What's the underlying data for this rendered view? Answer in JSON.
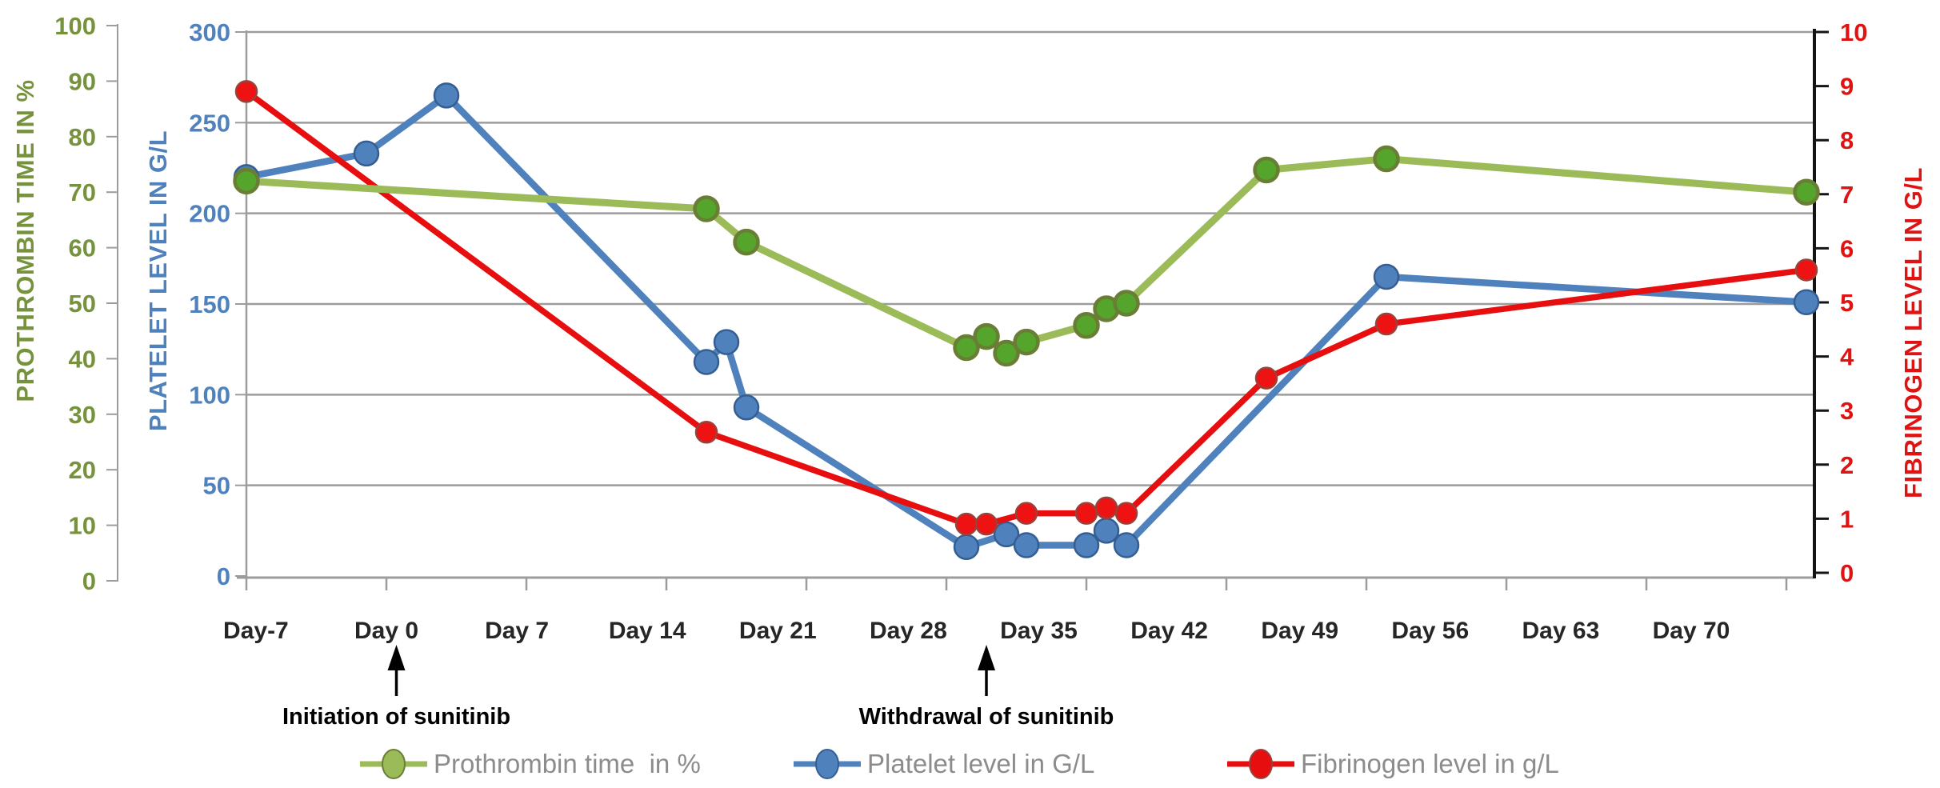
{
  "chart_data": {
    "type": "line",
    "title": "",
    "x_axis": {
      "labels": [
        "Day-7",
        "Day 0",
        "Day 7",
        "Day 14",
        "Day 21",
        "Day 28",
        "Day 35",
        "Day 42",
        "Day 49",
        "Day 56",
        "Day 63",
        "Day 70"
      ],
      "label_days": [
        -7,
        0,
        7,
        14,
        21,
        28,
        35,
        42,
        49,
        56,
        63,
        70
      ],
      "tick_interval_days": 7,
      "range_days": [
        -7,
        71.5
      ]
    },
    "y_axes": {
      "prothrombin": {
        "title": "PROTHROMBIN TIME IN %",
        "side": "left",
        "range": [
          0,
          100
        ],
        "tick_step": 10,
        "ticks": [
          0,
          10,
          20,
          30,
          40,
          50,
          60,
          70,
          80,
          90,
          100
        ],
        "color": "#76923C"
      },
      "platelet": {
        "title": "PLATELET LEVEL IN G/L",
        "side": "left",
        "range": [
          0,
          300
        ],
        "tick_step": 50,
        "ticks": [
          0,
          50,
          100,
          150,
          200,
          250,
          300
        ],
        "color": "#4F81BD"
      },
      "fibrinogen": {
        "title": "FIBRINOGEN LEVEL IN G/L",
        "side": "right",
        "range": [
          0,
          10
        ],
        "tick_step": 1,
        "ticks": [
          0,
          1,
          2,
          3,
          4,
          5,
          6,
          7,
          8,
          9,
          10
        ],
        "color": "#E01313"
      }
    },
    "gridlines": {
      "color": "#9C9C9C",
      "at_platelet_values": [
        0,
        50,
        100,
        150,
        200,
        250,
        300
      ]
    },
    "series": [
      {
        "id": "prothrombin",
        "name": "Prothrombin time  in %",
        "axis": "prothrombin",
        "line_color": "#9BBB59",
        "marker_fill": "#55A42C",
        "marker_edge": "#697D35",
        "points": [
          [
            -7,
            72
          ],
          [
            16,
            67
          ],
          [
            18,
            61
          ],
          [
            29,
            42
          ],
          [
            30,
            44
          ],
          [
            31,
            41
          ],
          [
            32,
            43
          ],
          [
            35,
            46
          ],
          [
            36,
            49
          ],
          [
            37,
            50
          ],
          [
            44,
            74
          ],
          [
            50,
            76
          ],
          [
            71,
            70
          ]
        ]
      },
      {
        "id": "platelet",
        "name": "Platelet level in G/L",
        "axis": "platelet",
        "line_color": "#4F81BD",
        "marker_fill": "#4F81BD",
        "marker_edge": "#345E92",
        "points": [
          [
            -7,
            220
          ],
          [
            -1,
            233
          ],
          [
            3,
            265
          ],
          [
            16,
            118
          ],
          [
            17,
            129
          ],
          [
            18,
            93
          ],
          [
            29,
            16
          ],
          [
            31,
            23
          ],
          [
            32,
            17
          ],
          [
            35,
            17
          ],
          [
            36,
            25
          ],
          [
            37,
            17
          ],
          [
            50,
            165
          ],
          [
            71,
            151
          ]
        ]
      },
      {
        "id": "fibrinogen",
        "name": "Fibrinogen level in g/L",
        "axis": "fibrinogen",
        "line_color": "#E60E0E",
        "marker_fill": "#EE1212",
        "marker_edge": "#97423A",
        "points": [
          [
            -7,
            8.9
          ],
          [
            16,
            2.6
          ],
          [
            29,
            0.9
          ],
          [
            30,
            0.9
          ],
          [
            32,
            1.1
          ],
          [
            35,
            1.1
          ],
          [
            36,
            1.2
          ],
          [
            37,
            1.1
          ],
          [
            44,
            3.6
          ],
          [
            50,
            4.6
          ],
          [
            71,
            5.6
          ]
        ]
      }
    ],
    "annotations": [
      {
        "text": "Initiation of sunitinib",
        "day": 0.5
      },
      {
        "text": "Withdrawal of sunitinib",
        "day": 30
      }
    ],
    "legend": [
      {
        "label": "Prothrombin time  in %"
      },
      {
        "label": "Platelet level in G/L"
      },
      {
        "label": "Fibrinogen level in g/L"
      }
    ]
  }
}
